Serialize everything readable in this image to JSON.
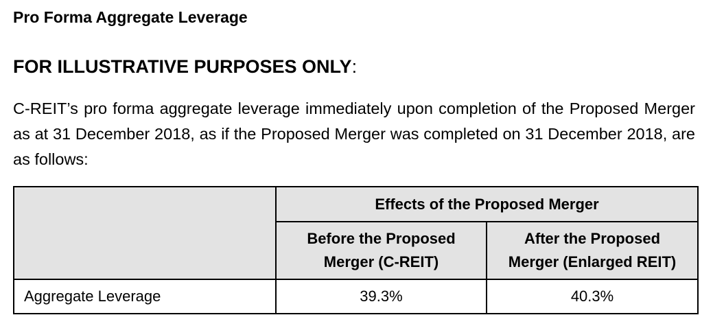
{
  "heading": "Pro Forma Aggregate Leverage",
  "notice": {
    "text": "FOR ILLUSTRATIVE PURPOSES ONLY",
    "suffix": ":"
  },
  "paragraph": "C-REIT’s pro forma aggregate leverage immediately upon completion of the Proposed Merger as at 31 December 2018, as if the Proposed Merger was completed on 31 December 2018, are as follows:",
  "table": {
    "group_header": "Effects of the Proposed Merger",
    "columns": [
      {
        "line1": "Before the Proposed",
        "line2": "Merger (C-REIT)"
      },
      {
        "line1": "After the Proposed",
        "line2": "Merger (Enlarged REIT)"
      }
    ],
    "rows": [
      {
        "label": "Aggregate Leverage",
        "values": [
          "39.3%",
          "40.3%"
        ]
      }
    ]
  }
}
